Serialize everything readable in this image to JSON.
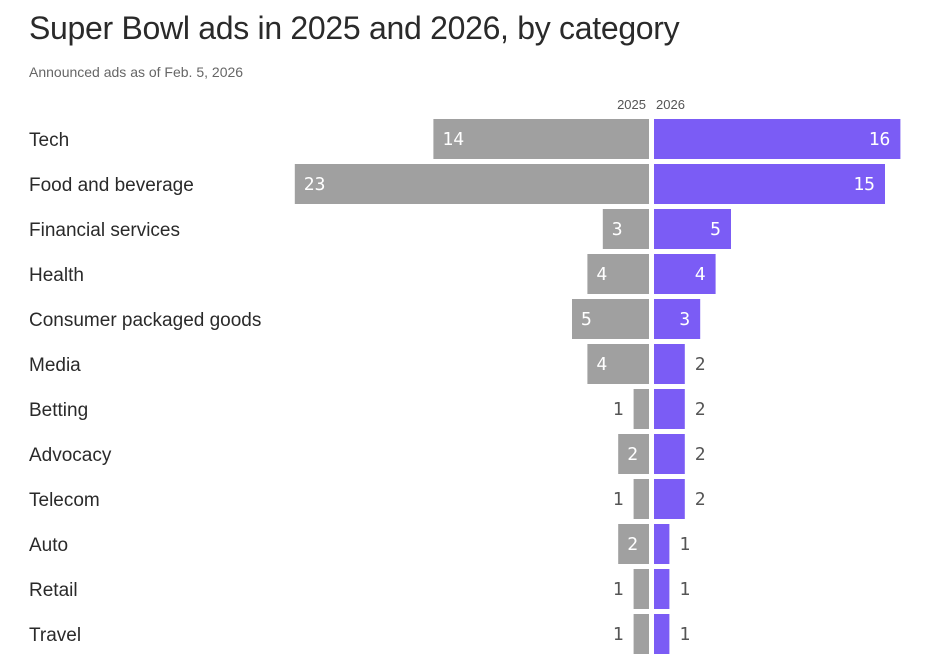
{
  "chart_data": {
    "type": "bar",
    "orientation": "horizontal-diverging",
    "title": "Super Bowl ads in 2025 and 2026, by category",
    "subtitle": "Announced ads as of Feb. 5, 2026",
    "categories": [
      "Tech",
      "Food and beverage",
      "Financial services",
      "Health",
      "Consumer packaged goods",
      "Media",
      "Betting",
      "Advocacy",
      "Telecom",
      "Auto",
      "Retail",
      "Travel"
    ],
    "series": [
      {
        "name": "2025",
        "color": "#a0a0a0",
        "values": [
          14,
          23,
          3,
          4,
          5,
          4,
          1,
          2,
          1,
          2,
          1,
          1
        ]
      },
      {
        "name": "2026",
        "color": "#7b5cf5",
        "values": [
          16,
          15,
          5,
          4,
          3,
          2,
          2,
          2,
          2,
          1,
          1,
          1
        ]
      }
    ],
    "xlim": [
      0,
      23
    ]
  }
}
